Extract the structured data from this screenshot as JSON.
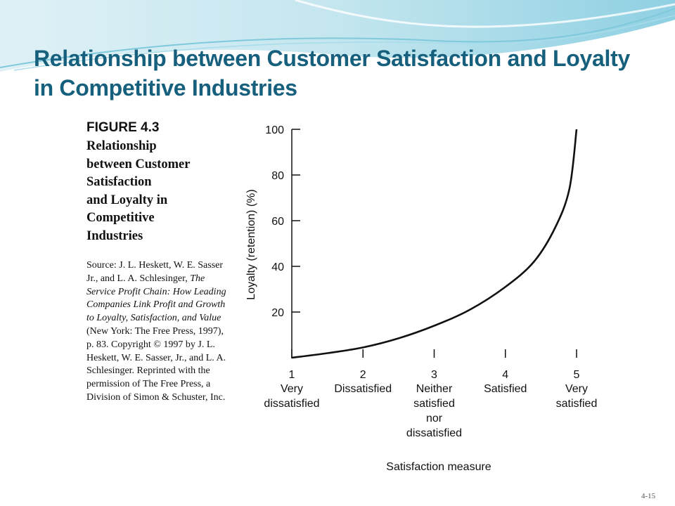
{
  "slide": {
    "title": "Relationship between Customer Satisfaction and Loyalty in Competitive Industries",
    "page_number": "4-15"
  },
  "figure": {
    "number": "FIGURE 4.3",
    "heading": "Relationship\nbetween Customer\nSatisfaction\nand Loyalty in\nCompetitive\nIndustries",
    "source": {
      "prefix": "Source: J. L. Heskett, W. E. Sasser Jr., and L. A. Schlesinger, ",
      "book_title": "The Service Profit Chain: How Leading Companies Link Profit and Growth to Loyalty, Satisfaction, and Value",
      "suffix": " (New York: The Free Press, 1997), p. 83. Copyright © 1997 by J. L. Heskett, W. E. Sasser, Jr., and L. A. Schlesinger. Reprinted with the permission of The Free Press, a Division of Simon & Schuster, Inc."
    }
  },
  "chart_data": {
    "type": "line",
    "title": "",
    "xlabel": "Satisfaction measure",
    "ylabel": "Loyalty (retention) (%)",
    "xlim": [
      1,
      5
    ],
    "ylim": [
      0,
      100
    ],
    "x_ticks": [
      1,
      2,
      3,
      4,
      5
    ],
    "x_tick_labels": [
      "1",
      "2",
      "3",
      "4",
      "5"
    ],
    "x_category_labels": [
      [
        "Very",
        "dissatisfied"
      ],
      [
        "Dissatisfied"
      ],
      [
        "Neither",
        "satisfied",
        "nor",
        "dissatisfied"
      ],
      [
        "Satisfied"
      ],
      [
        "Very",
        "satisfied"
      ]
    ],
    "y_ticks": [
      20,
      40,
      60,
      80,
      100
    ],
    "y_tick_labels": [
      "20",
      "40",
      "60",
      "80",
      "100"
    ],
    "grid": false,
    "series": [
      {
        "x": [
          1,
          1.5,
          2,
          2.5,
          3,
          3.5,
          4,
          4.4,
          4.7,
          4.9,
          5
        ],
        "y": [
          0,
          2,
          4.5,
          8.5,
          14,
          21,
          31,
          42,
          57,
          74,
          100
        ]
      }
    ]
  },
  "colors": {
    "title": "#17607d",
    "curve": "#111111"
  }
}
